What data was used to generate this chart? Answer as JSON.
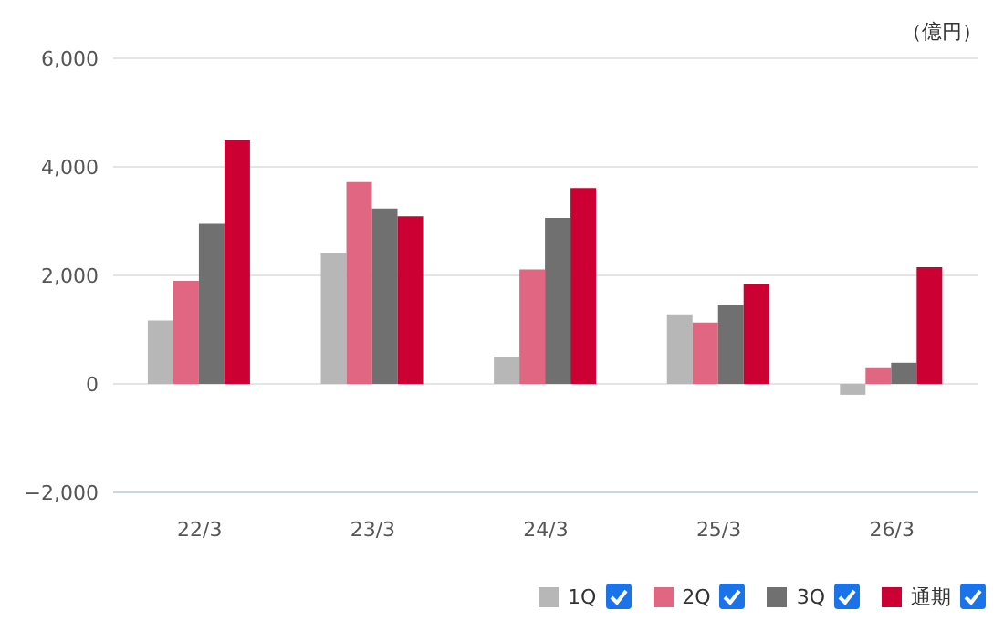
{
  "chart_data": {
    "type": "bar",
    "categories": [
      "22/3",
      "23/3",
      "24/3",
      "25/3",
      "26/3"
    ],
    "series": [
      {
        "name": "1Q",
        "color": "#b7b7b7",
        "values": [
          1170,
          2420,
          500,
          1280,
          -200
        ]
      },
      {
        "name": "2Q",
        "color": "#e06682",
        "values": [
          1900,
          3720,
          2110,
          1130,
          290
        ]
      },
      {
        "name": "3Q",
        "color": "#707070",
        "values": [
          2950,
          3230,
          3060,
          1450,
          390
        ]
      },
      {
        "name": "通期",
        "color": "#cc0033",
        "values": [
          4490,
          3090,
          3610,
          1830,
          2150
        ]
      }
    ],
    "ylim": [
      -2000,
      6000
    ],
    "yticks": [
      {
        "value": -2000,
        "label": "−2,000"
      },
      0,
      {
        "value": 2000,
        "label": "2,000"
      },
      {
        "value": 4000,
        "label": "4,000"
      },
      {
        "value": 6000,
        "label": "6,000"
      }
    ],
    "grid": "y",
    "legend": "bottom right",
    "annotations": [
      "（億円）"
    ]
  }
}
